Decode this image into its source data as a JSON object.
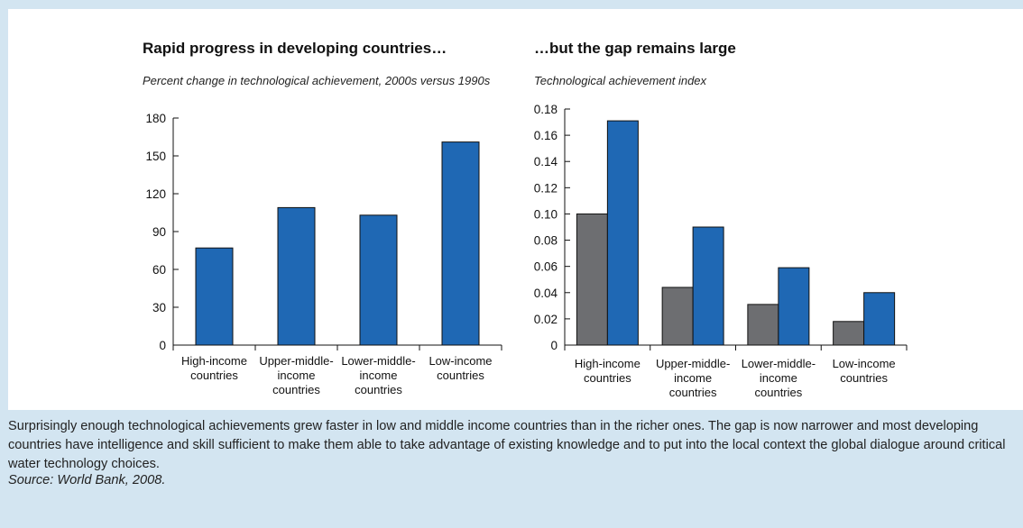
{
  "colors": {
    "blue": "#1f68b4",
    "gray": "#6d6e71",
    "background": "#d3e5f1"
  },
  "chart_data": [
    {
      "type": "bar",
      "title": "Rapid progress in developing countries…",
      "subtitle": "Percent change in technological achievement, 2000s versus 1990s",
      "categories": [
        [
          "High-income",
          "countries"
        ],
        [
          "Upper-middle-",
          "income",
          "countries"
        ],
        [
          "Lower-middle-",
          "income",
          "countries"
        ],
        [
          "Low-income",
          "countries"
        ]
      ],
      "series": [
        {
          "values": [
            77,
            109,
            103,
            161
          ],
          "color": "#1f68b4"
        }
      ],
      "ylim": [
        0,
        180
      ],
      "yticks": [
        "0",
        "30",
        "60",
        "90",
        "120",
        "150",
        "180"
      ],
      "grid": false
    },
    {
      "type": "bar",
      "title": "…but the gap remains large",
      "subtitle": "Technological achievement index",
      "categories": [
        [
          "High-income",
          "countries"
        ],
        [
          "Upper-middle-",
          "income",
          "countries"
        ],
        [
          "Lower-middle-",
          "income",
          "countries"
        ],
        [
          "Low-income",
          "countries"
        ]
      ],
      "series": [
        {
          "values": [
            0.1,
            0.044,
            0.031,
            0.018
          ],
          "color": "#6d6e71"
        },
        {
          "values": [
            0.171,
            0.09,
            0.059,
            0.04
          ],
          "color": "#1f68b4"
        }
      ],
      "ylim": [
        0,
        0.18
      ],
      "yticks": [
        "0",
        "0.02",
        "0.04",
        "0.06",
        "0.08",
        "0.10",
        "0.12",
        "0.14",
        "0.16",
        "0.18"
      ],
      "grid": false
    }
  ],
  "caption": "Surprisingly enough technological achievements grew faster in low and middle income countries than in the richer ones. The gap is now narrower and most developing countries have intelligence and skill sufficient to make them able to take advantage of existing knowledge and to put into the local context the global dialogue around critical water technology choices.",
  "source": "Source: World Bank, 2008."
}
